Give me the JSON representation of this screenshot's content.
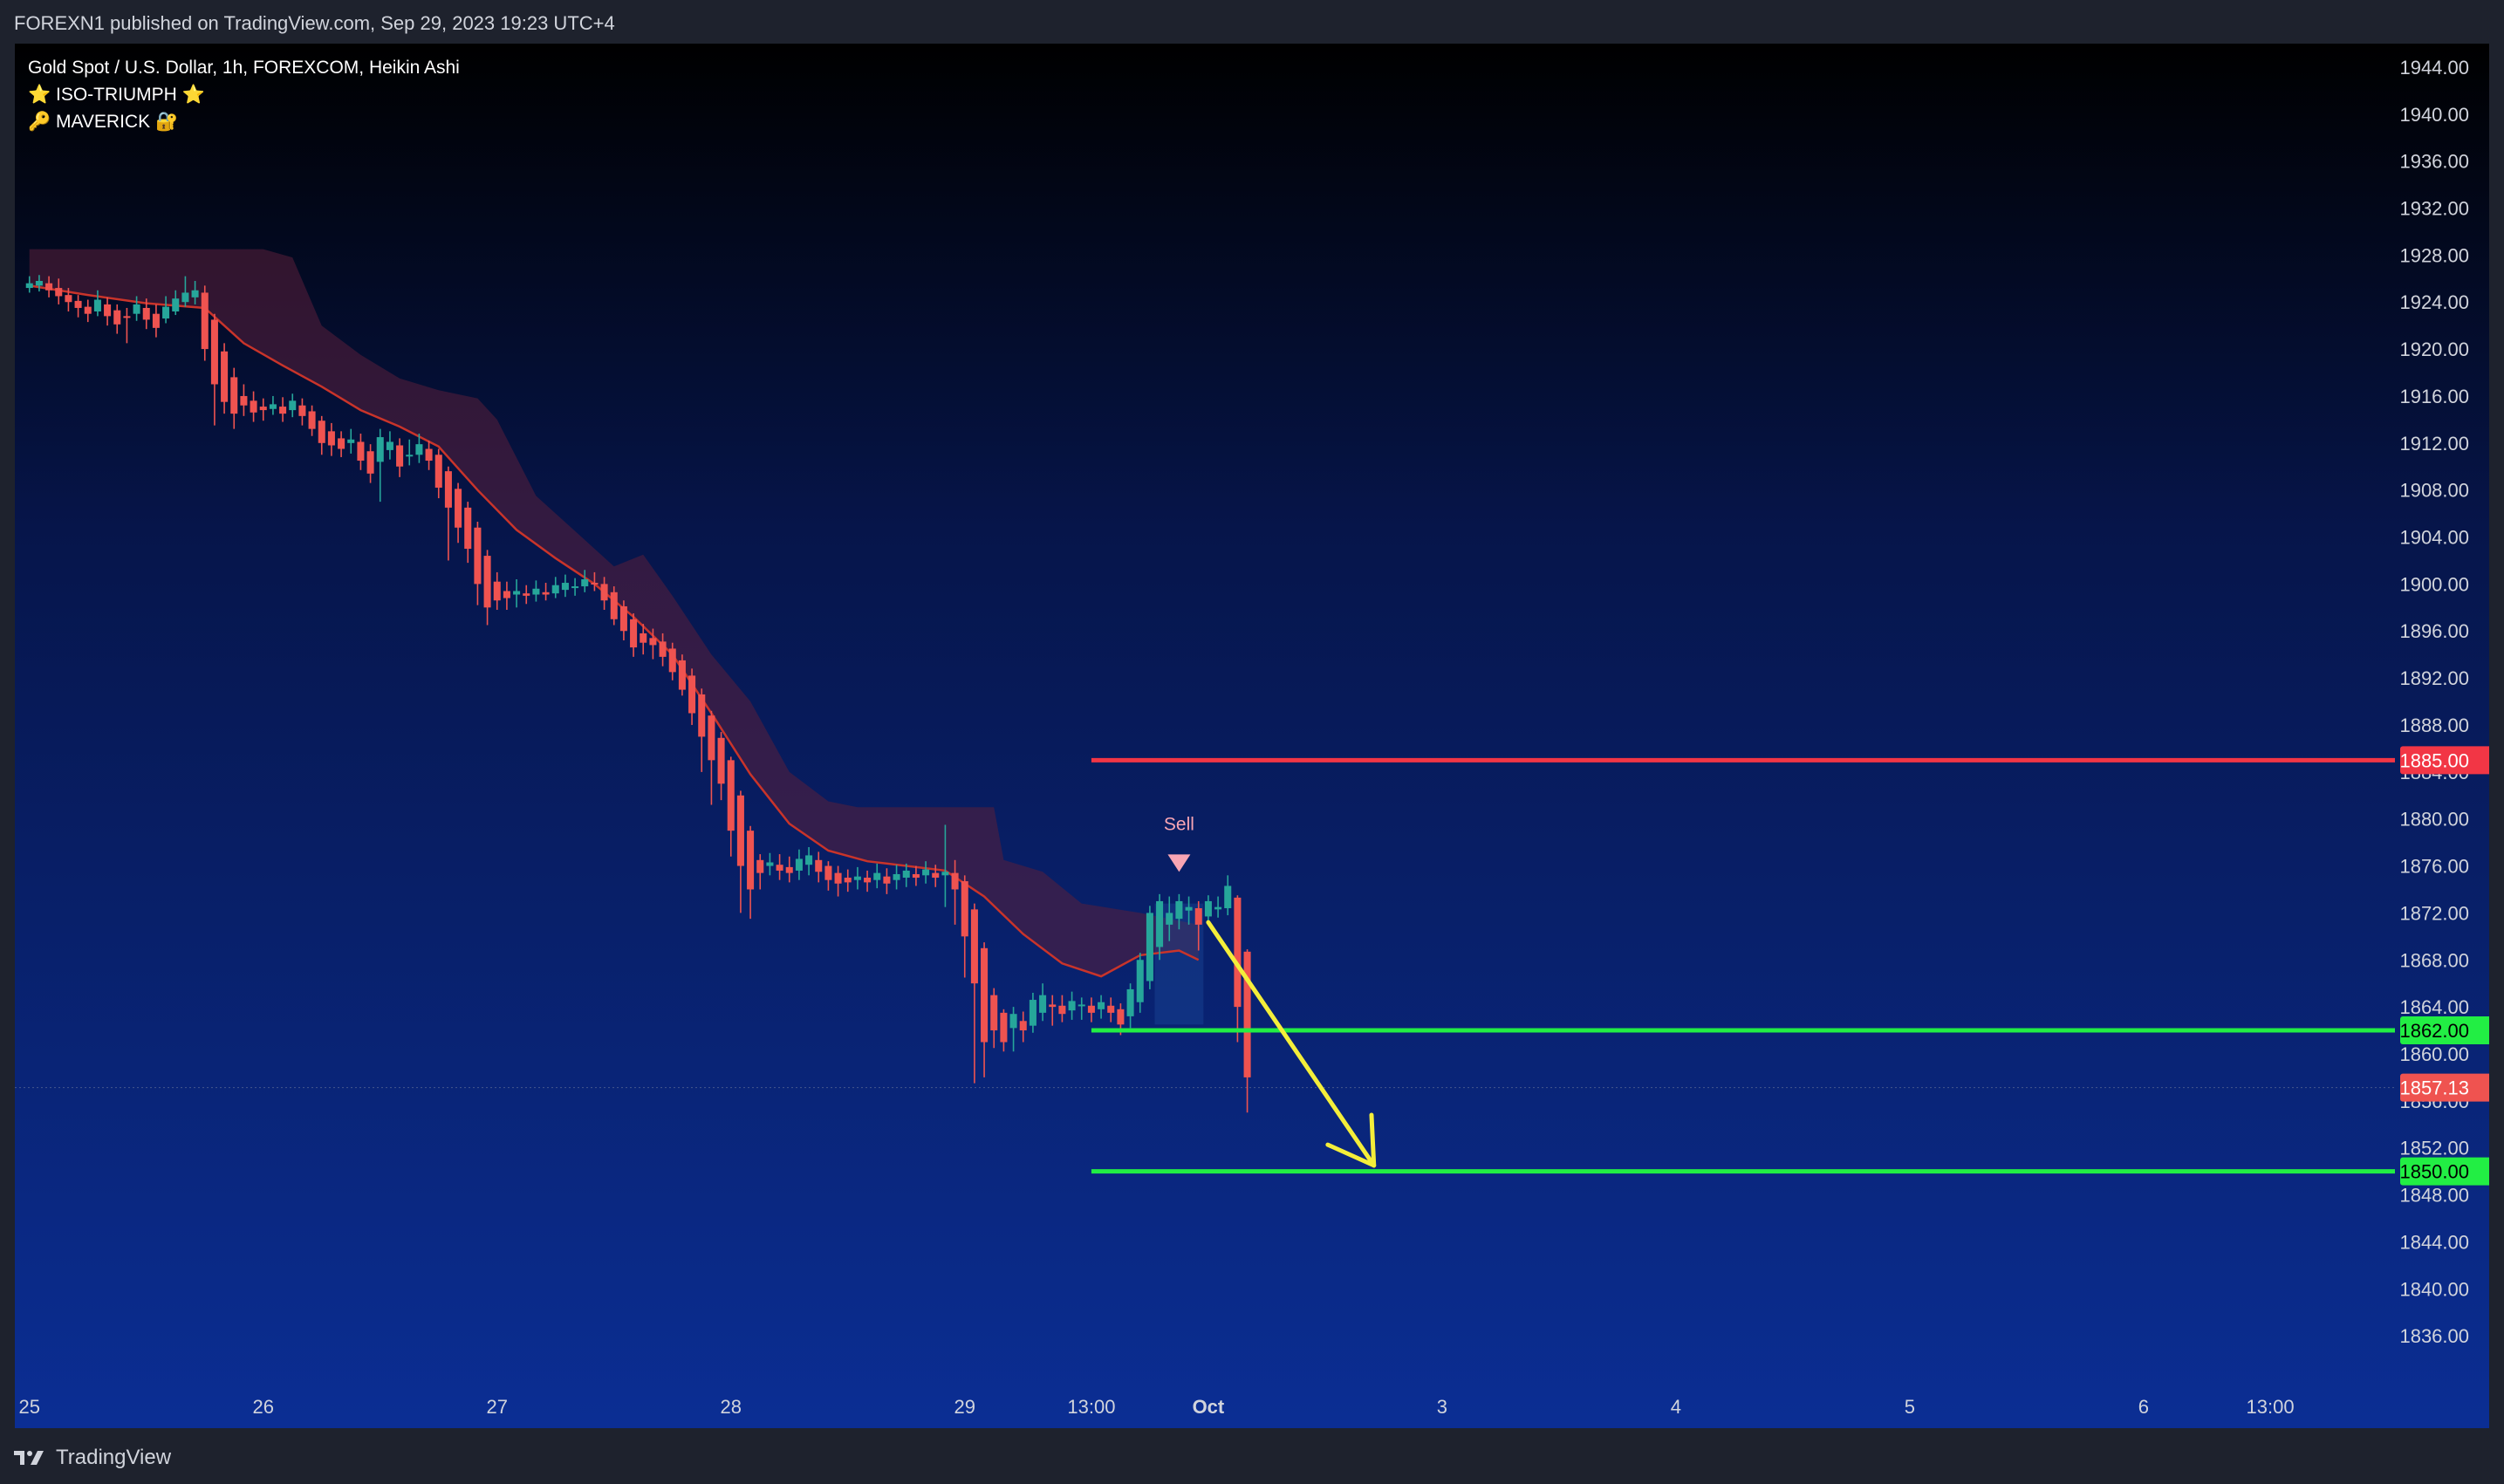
{
  "header": {
    "publisher": "FOREXN1 published on TradingView.com, Sep 29, 2023 19:23 UTC+4"
  },
  "legend": {
    "symbol": "Gold Spot / U.S. Dollar, 1h, FOREXCOM, Heikin Ashi",
    "indicator1": "⭐ ISO-TRIUMPH ⭐",
    "indicator2": "🔑 MAVERICK 🔐"
  },
  "footer": {
    "brand": "TradingView",
    "logo_icon": "tradingview-logo-icon"
  },
  "colors": {
    "bg_top": "#000000",
    "bg_bottom": "#0b2e94",
    "frame": "#1e222d",
    "bull": "#26a69a",
    "bear": "#ef5350",
    "resistance": "#f23645",
    "support": "#22ee44",
    "arrow": "#f4ee3a",
    "ema": "#c9342a",
    "cloud": "#5a1f3a",
    "price_label": "#ef5350",
    "text": "#d1d4dc"
  },
  "chart_data": {
    "type": "candlestick",
    "chart_style": "Heikin Ashi",
    "timeframe": "1h",
    "title": "Gold Spot / U.S. Dollar",
    "ylim": [
      1832,
      1946
    ],
    "y_ticks": [
      "1944.00",
      "1940.00",
      "1936.00",
      "1932.00",
      "1928.00",
      "1924.00",
      "1920.00",
      "1916.00",
      "1912.00",
      "1908.00",
      "1904.00",
      "1900.00",
      "1896.00",
      "1892.00",
      "1888.00",
      "1884.00",
      "1880.00",
      "1876.00",
      "1872.00",
      "1868.00",
      "1864.00",
      "1860.00",
      "1856.00",
      "1852.00",
      "1848.00",
      "1844.00",
      "1840.00",
      "1836.00"
    ],
    "x_ticks": [
      {
        "label": "25",
        "bar": 0
      },
      {
        "label": "26",
        "bar": 24
      },
      {
        "label": "27",
        "bar": 48
      },
      {
        "label": "28",
        "bar": 72
      },
      {
        "label": "29",
        "bar": 96
      },
      {
        "label": "13:00",
        "bar": 109
      },
      {
        "label": "Oct",
        "bar": 121
      },
      {
        "label": "3",
        "bar": 145
      },
      {
        "label": "4",
        "bar": 169
      },
      {
        "label": "5",
        "bar": 193
      },
      {
        "label": "6",
        "bar": 217
      },
      {
        "label": "13:00",
        "bar": 230
      }
    ],
    "x_bar_range": [
      -1.5,
      242.8
    ],
    "candles": [
      [
        1925.2,
        1925.6,
        1926.2,
        1924.8
      ],
      [
        1925.4,
        1925.8,
        1926.3,
        1924.9
      ],
      [
        1925.6,
        1925.0,
        1926.2,
        1924.4
      ],
      [
        1925.2,
        1924.5,
        1926.0,
        1923.8
      ],
      [
        1924.6,
        1924.0,
        1925.2,
        1923.2
      ],
      [
        1924.1,
        1923.5,
        1924.6,
        1922.7
      ],
      [
        1923.6,
        1923.0,
        1924.2,
        1922.3
      ],
      [
        1923.2,
        1924.2,
        1925.0,
        1922.8
      ],
      [
        1923.8,
        1922.8,
        1924.4,
        1922.0
      ],
      [
        1923.3,
        1922.1,
        1923.8,
        1921.3
      ],
      [
        1922.8,
        1922.7,
        1923.5,
        1920.5
      ],
      [
        1923.0,
        1923.8,
        1924.5,
        1922.4
      ],
      [
        1923.5,
        1922.5,
        1924.3,
        1921.7
      ],
      [
        1923.0,
        1921.8,
        1923.8,
        1921.0
      ],
      [
        1922.6,
        1923.6,
        1924.5,
        1922.2
      ],
      [
        1923.2,
        1924.3,
        1925.0,
        1922.9
      ],
      [
        1924.0,
        1924.8,
        1926.2,
        1923.6
      ],
      [
        1924.4,
        1925.0,
        1925.8,
        1923.8
      ],
      [
        1924.8,
        1920.0,
        1925.4,
        1919.0
      ],
      [
        1922.5,
        1917.0,
        1923.0,
        1913.5
      ],
      [
        1919.8,
        1915.5,
        1920.5,
        1914.5
      ],
      [
        1917.6,
        1914.5,
        1918.4,
        1913.2
      ],
      [
        1916.0,
        1915.2,
        1917.0,
        1914.3
      ],
      [
        1915.6,
        1914.6,
        1916.4,
        1913.8
      ],
      [
        1915.1,
        1914.8,
        1915.8,
        1913.9
      ],
      [
        1914.9,
        1915.3,
        1916.0,
        1914.4
      ],
      [
        1915.1,
        1914.5,
        1915.9,
        1913.8
      ],
      [
        1914.8,
        1915.6,
        1916.2,
        1914.2
      ],
      [
        1915.2,
        1914.3,
        1915.8,
        1913.5
      ],
      [
        1914.7,
        1913.2,
        1915.2,
        1912.6
      ],
      [
        1913.9,
        1912.0,
        1914.3,
        1911.0
      ],
      [
        1913.0,
        1911.8,
        1913.7,
        1910.9
      ],
      [
        1912.4,
        1911.5,
        1913.0,
        1910.8
      ],
      [
        1912.0,
        1912.3,
        1913.2,
        1911.1
      ],
      [
        1912.1,
        1910.5,
        1912.8,
        1909.7
      ],
      [
        1911.3,
        1909.4,
        1911.9,
        1908.6
      ],
      [
        1910.4,
        1912.5,
        1913.2,
        1907.0
      ],
      [
        1911.4,
        1912.1,
        1913.0,
        1910.6
      ],
      [
        1911.8,
        1910.0,
        1912.4,
        1909.1
      ],
      [
        1910.9,
        1911.0,
        1912.3,
        1910.1
      ],
      [
        1911.0,
        1911.9,
        1912.8,
        1910.3
      ],
      [
        1911.5,
        1910.5,
        1912.2,
        1909.7
      ],
      [
        1911.0,
        1908.2,
        1911.5,
        1907.3
      ],
      [
        1909.6,
        1906.5,
        1910.0,
        1902.0
      ],
      [
        1908.1,
        1904.8,
        1908.6,
        1903.5
      ],
      [
        1906.5,
        1903.0,
        1907.0,
        1901.8
      ],
      [
        1904.8,
        1900.0,
        1905.3,
        1898.2
      ],
      [
        1902.4,
        1898.0,
        1902.9,
        1896.5
      ],
      [
        1900.2,
        1898.6,
        1901.0,
        1897.8
      ],
      [
        1899.4,
        1898.8,
        1900.2,
        1897.8
      ],
      [
        1899.1,
        1899.4,
        1900.4,
        1898.0
      ],
      [
        1899.2,
        1899.0,
        1899.9,
        1898.3
      ],
      [
        1899.1,
        1899.6,
        1900.3,
        1898.5
      ],
      [
        1899.3,
        1899.1,
        1900.1,
        1898.6
      ],
      [
        1899.2,
        1899.9,
        1900.6,
        1898.8
      ],
      [
        1899.5,
        1900.1,
        1900.8,
        1898.9
      ],
      [
        1899.8,
        1899.8,
        1900.5,
        1899.0
      ],
      [
        1899.8,
        1900.4,
        1901.2,
        1899.3
      ],
      [
        1900.1,
        1900.0,
        1901.0,
        1899.4
      ],
      [
        1900.0,
        1898.6,
        1900.6,
        1897.8
      ],
      [
        1899.3,
        1897.0,
        1899.8,
        1896.5
      ],
      [
        1898.1,
        1896.0,
        1898.6,
        1895.2
      ],
      [
        1897.0,
        1894.6,
        1897.5,
        1893.8
      ],
      [
        1895.8,
        1895.0,
        1896.6,
        1894.0
      ],
      [
        1895.4,
        1894.8,
        1896.2,
        1893.6
      ],
      [
        1895.1,
        1893.8,
        1895.8,
        1893.0
      ],
      [
        1894.5,
        1892.5,
        1895.0,
        1891.8
      ],
      [
        1893.5,
        1891.0,
        1894.0,
        1890.5
      ],
      [
        1892.2,
        1889.0,
        1892.8,
        1888.0
      ],
      [
        1890.6,
        1887.0,
        1891.1,
        1884.0
      ],
      [
        1888.8,
        1885.0,
        1889.2,
        1881.2
      ],
      [
        1886.9,
        1883.0,
        1887.4,
        1881.6
      ],
      [
        1885.0,
        1879.0,
        1885.3,
        1876.8
      ],
      [
        1882.0,
        1876.0,
        1882.4,
        1872.0
      ],
      [
        1879.0,
        1874.0,
        1879.4,
        1871.5
      ],
      [
        1876.5,
        1875.4,
        1877.0,
        1874.0
      ],
      [
        1876.0,
        1876.3,
        1877.1,
        1875.2
      ],
      [
        1876.1,
        1875.6,
        1877.0,
        1874.8
      ],
      [
        1875.9,
        1875.4,
        1876.8,
        1874.6
      ],
      [
        1875.6,
        1876.6,
        1877.4,
        1874.8
      ],
      [
        1876.1,
        1876.9,
        1877.6,
        1875.2
      ],
      [
        1876.5,
        1875.5,
        1877.2,
        1874.6
      ],
      [
        1876.0,
        1874.8,
        1876.4,
        1873.9
      ],
      [
        1875.4,
        1874.5,
        1876.0,
        1873.4
      ],
      [
        1875.0,
        1874.6,
        1875.7,
        1873.8
      ],
      [
        1874.8,
        1875.1,
        1875.9,
        1874.0
      ],
      [
        1875.0,
        1874.6,
        1875.6,
        1873.8
      ],
      [
        1874.8,
        1875.4,
        1876.2,
        1874.1
      ],
      [
        1875.1,
        1874.5,
        1875.8,
        1873.6
      ],
      [
        1874.8,
        1875.3,
        1876.1,
        1874.0
      ],
      [
        1875.0,
        1875.6,
        1876.2,
        1874.2
      ],
      [
        1875.3,
        1875.0,
        1876.0,
        1874.3
      ],
      [
        1875.2,
        1875.7,
        1876.4,
        1874.5
      ],
      [
        1875.4,
        1875.0,
        1876.1,
        1874.2
      ],
      [
        1875.2,
        1875.5,
        1879.5,
        1872.5
      ],
      [
        1875.4,
        1874.0,
        1876.5,
        1871.0
      ],
      [
        1874.7,
        1870.0,
        1875.2,
        1866.5
      ],
      [
        1872.3,
        1866.0,
        1872.8,
        1857.5
      ],
      [
        1869.0,
        1861.0,
        1869.5,
        1858.0
      ],
      [
        1865.0,
        1862.0,
        1865.6,
        1860.5
      ],
      [
        1863.5,
        1861.0,
        1863.8,
        1860.2
      ],
      [
        1862.2,
        1863.4,
        1864.0,
        1860.2
      ],
      [
        1862.8,
        1862.0,
        1863.6,
        1861.0
      ],
      [
        1862.4,
        1864.6,
        1865.2,
        1861.8
      ],
      [
        1863.5,
        1865.0,
        1866.0,
        1862.8
      ],
      [
        1864.2,
        1864.0,
        1865.0,
        1862.4
      ],
      [
        1864.1,
        1863.4,
        1865.0,
        1862.7
      ],
      [
        1863.7,
        1864.5,
        1865.3,
        1862.9
      ],
      [
        1864.1,
        1864.2,
        1864.8,
        1862.9
      ],
      [
        1864.1,
        1863.5,
        1864.8,
        1862.7
      ],
      [
        1863.8,
        1864.4,
        1865.0,
        1863.0
      ],
      [
        1864.1,
        1863.5,
        1864.8,
        1862.7
      ],
      [
        1863.8,
        1862.5,
        1864.3,
        1861.6
      ],
      [
        1863.2,
        1865.5,
        1866.0,
        1862.2
      ],
      [
        1864.4,
        1868.0,
        1868.6,
        1863.5
      ],
      [
        1866.2,
        1872.0,
        1872.6,
        1865.5
      ],
      [
        1869.1,
        1873.0,
        1873.6,
        1868.0
      ],
      [
        1871.0,
        1872.0,
        1873.4,
        1869.6
      ],
      [
        1871.5,
        1873.0,
        1873.6,
        1870.6
      ],
      [
        1872.2,
        1872.5,
        1873.4,
        1871.0
      ],
      [
        1872.4,
        1871.0,
        1873.0,
        1868.8
      ],
      [
        1871.7,
        1873.0,
        1873.5,
        1871.0
      ],
      [
        1872.3,
        1872.5,
        1873.4,
        1871.6
      ],
      [
        1872.4,
        1874.3,
        1875.2,
        1871.8
      ],
      [
        1873.3,
        1864.0,
        1873.5,
        1861.0
      ],
      [
        1868.7,
        1858.0,
        1868.9,
        1855.0
      ]
    ],
    "ema_line": [
      [
        0,
        1925.4
      ],
      [
        6,
        1924.6
      ],
      [
        12,
        1923.9
      ],
      [
        18,
        1923.5
      ],
      [
        22,
        1920.5
      ],
      [
        26,
        1918.6
      ],
      [
        30,
        1916.8
      ],
      [
        34,
        1914.8
      ],
      [
        38,
        1913.4
      ],
      [
        42,
        1911.7
      ],
      [
        46,
        1908.0
      ],
      [
        50,
        1904.6
      ],
      [
        54,
        1902.2
      ],
      [
        58,
        1900.0
      ],
      [
        62,
        1897.2
      ],
      [
        66,
        1894.0
      ],
      [
        70,
        1889.0
      ],
      [
        74,
        1883.8
      ],
      [
        78,
        1879.6
      ],
      [
        82,
        1877.3
      ],
      [
        86,
        1876.4
      ],
      [
        90,
        1876.0
      ],
      [
        94,
        1875.6
      ],
      [
        98,
        1873.4
      ],
      [
        102,
        1870.2
      ],
      [
        106,
        1867.7
      ],
      [
        110,
        1866.6
      ],
      [
        114,
        1868.4
      ],
      [
        118,
        1868.8
      ],
      [
        120,
        1868.0
      ]
    ],
    "cloud_upper": [
      [
        0,
        1928.5
      ],
      [
        5,
        1928.5
      ],
      [
        14,
        1928.5
      ],
      [
        20,
        1928.5
      ],
      [
        24,
        1928.5
      ],
      [
        27,
        1927.8
      ],
      [
        30,
        1922.0
      ],
      [
        34,
        1919.5
      ],
      [
        38,
        1917.5
      ],
      [
        42,
        1916.5
      ],
      [
        46,
        1915.8
      ],
      [
        48,
        1914.0
      ],
      [
        52,
        1907.5
      ],
      [
        56,
        1904.5
      ],
      [
        60,
        1901.5
      ],
      [
        63,
        1902.5
      ],
      [
        66,
        1899.0
      ],
      [
        70,
        1894.0
      ],
      [
        74,
        1890.0
      ],
      [
        78,
        1884.0
      ],
      [
        82,
        1881.5
      ],
      [
        85,
        1881.0
      ],
      [
        99,
        1881.0
      ],
      [
        100,
        1876.5
      ],
      [
        104,
        1875.5
      ],
      [
        108,
        1872.8
      ],
      [
        114,
        1872.0
      ],
      [
        120,
        1871.0
      ]
    ],
    "annotations": {
      "resistance": {
        "value": 1885.0,
        "label": "1885.00",
        "start_bar": 109
      },
      "support1": {
        "value": 1862.0,
        "label": "1862.00",
        "start_bar": 109
      },
      "support2": {
        "value": 1850.0,
        "label": "1850.00",
        "start_bar": 109
      },
      "current_price": {
        "value": 1857.13,
        "label": "1857.13"
      },
      "sell_signal": {
        "label": "Sell",
        "bar": 118,
        "value": 1875.2
      },
      "arrow": {
        "from": [
          121,
          1871.2
        ],
        "to": [
          138,
          1850.5
        ]
      },
      "highlight_box": {
        "from_bar": 115.5,
        "to_bar": 120.5,
        "low": 1862.5,
        "high": 1872.8
      }
    }
  }
}
